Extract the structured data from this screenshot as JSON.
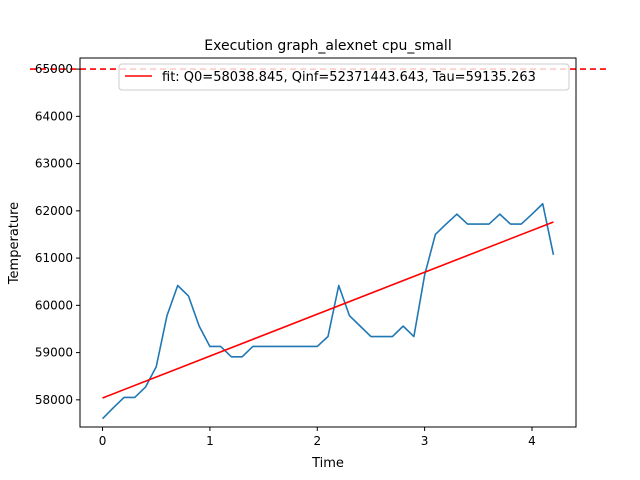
{
  "chart_data": {
    "type": "line",
    "title": "Execution graph_alexnet cpu_small",
    "xlabel": "Time",
    "ylabel": "Temperature",
    "xlim": [
      -0.21,
      4.41
    ],
    "ylim": [
      57425,
      65235
    ],
    "xticks": [
      0,
      1,
      2,
      3,
      4
    ],
    "xtick_labels": [
      "0",
      "1",
      "2",
      "3",
      "4"
    ],
    "yticks": [
      58000,
      59000,
      60000,
      61000,
      62000,
      63000,
      64000,
      65000
    ],
    "ytick_labels": [
      "58000",
      "59000",
      "60000",
      "61000",
      "62000",
      "63000",
      "64000",
      "65000"
    ],
    "grid": false,
    "legend_position": "top-right",
    "series": [
      {
        "color": "#1f77b4",
        "style": "solid",
        "x": [
          0,
          0.1,
          0.2,
          0.3,
          0.4,
          0.5,
          0.6,
          0.7,
          0.8,
          0.9,
          1.0,
          1.1,
          1.2,
          1.3,
          1.4,
          1.5,
          1.6,
          1.7,
          1.8,
          1.9,
          2.0,
          2.1,
          2.2,
          2.3,
          2.4,
          2.5,
          2.6,
          2.7,
          2.8,
          2.9,
          3.0,
          3.1,
          3.2,
          3.3,
          3.4,
          3.5,
          3.6,
          3.7,
          3.8,
          3.9,
          4.0,
          4.1,
          4.2
        ],
        "y": [
          57600,
          57830,
          58050,
          58050,
          58270,
          58700,
          59780,
          60420,
          60200,
          59560,
          59130,
          59130,
          58910,
          58910,
          59130,
          59130,
          59130,
          59130,
          59130,
          59130,
          59130,
          59340,
          60420,
          59780,
          59560,
          59340,
          59340,
          59340,
          59560,
          59340,
          60640,
          61500,
          61720,
          61930,
          61720,
          61720,
          61720,
          61930,
          61720,
          61720,
          61930,
          62150,
          61070
        ]
      },
      {
        "name": "fit: Q0=58038.845, Qinf=52371443.643, Tau=59135.263",
        "color": "#ff0000",
        "style": "solid",
        "x": [
          0,
          4.2
        ],
        "y": [
          58039,
          61765
        ]
      }
    ],
    "reference_lines": [
      {
        "orientation": "horizontal",
        "y": 65000,
        "color": "#ff0000",
        "style": "dashed"
      }
    ]
  }
}
